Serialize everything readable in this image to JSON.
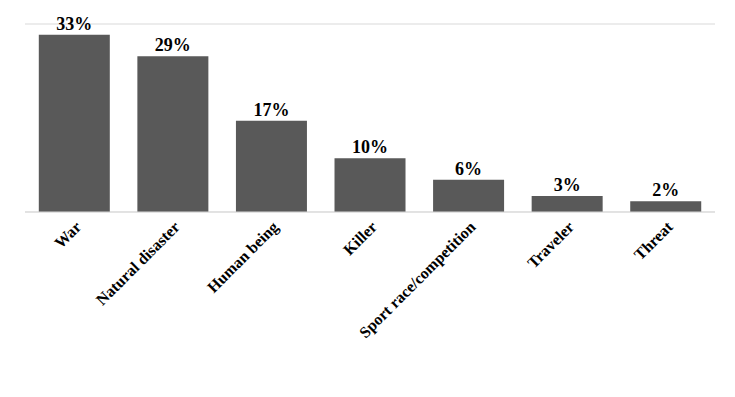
{
  "chart_data": {
    "type": "bar",
    "categories": [
      "War",
      "Natural disaster",
      "Human being",
      "Killer",
      "Sport race/competition",
      "Traveler",
      "Threat"
    ],
    "values": [
      33,
      29,
      17,
      10,
      6,
      3,
      2
    ],
    "value_labels": [
      "33%",
      "29%",
      "17%",
      "10%",
      "6%",
      "3%",
      "2%"
    ],
    "color": "#595959",
    "ylim": [
      0,
      35
    ],
    "yticks": [
      0,
      5,
      10,
      15,
      20,
      25,
      30,
      35
    ],
    "grid": true,
    "data_labels": true,
    "tick_labels": "x"
  }
}
